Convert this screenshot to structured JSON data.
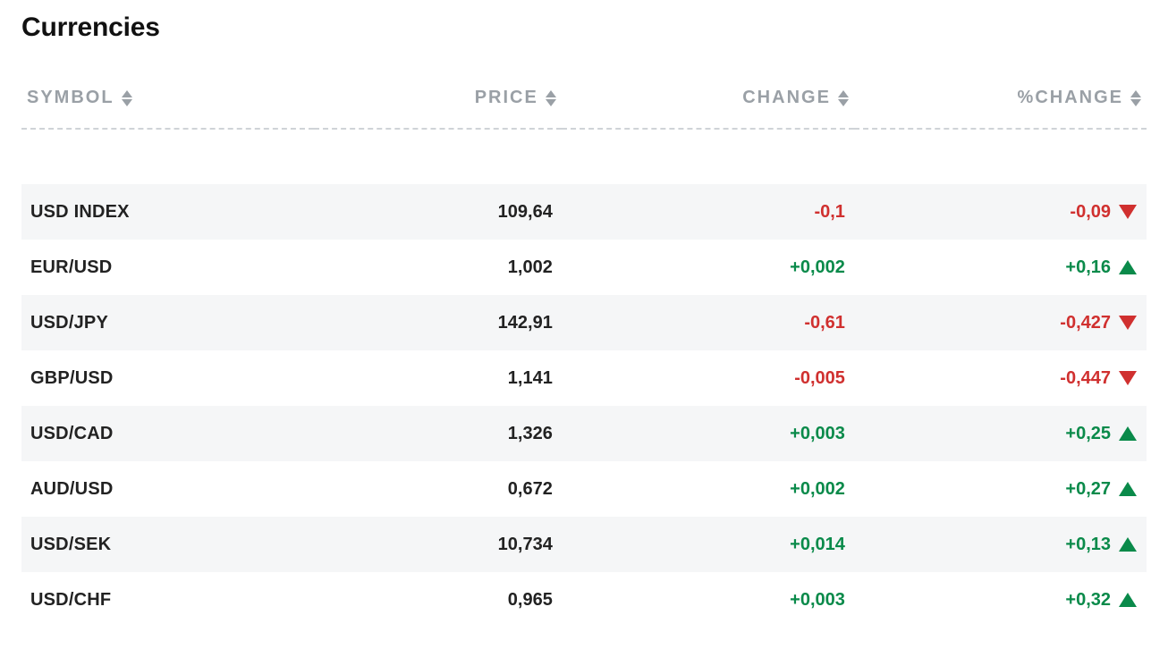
{
  "title": "Currencies",
  "colors": {
    "positive": "#0a8a4a",
    "negative": "#d0302f",
    "header_text": "#9aa0a6",
    "row_alt_bg": "#f5f6f7",
    "text": "#222222",
    "divider": "#cfd3d7",
    "sort_icon": "#9aa0a6"
  },
  "table": {
    "type": "table",
    "columns": [
      {
        "key": "symbol",
        "label": "SYMBOL",
        "align": "left",
        "sortable": true
      },
      {
        "key": "price",
        "label": "PRICE",
        "align": "right",
        "sortable": true
      },
      {
        "key": "change",
        "label": "CHANGE",
        "align": "right",
        "sortable": true
      },
      {
        "key": "pctchange",
        "label": "%CHANGE",
        "align": "right",
        "sortable": true
      }
    ],
    "rows": [
      {
        "symbol": "USD INDEX",
        "price": "109,64",
        "change": "-0,1",
        "pctchange": "-0,09",
        "direction": "down"
      },
      {
        "symbol": "EUR/USD",
        "price": "1,002",
        "change": "+0,002",
        "pctchange": "+0,16",
        "direction": "up"
      },
      {
        "symbol": "USD/JPY",
        "price": "142,91",
        "change": "-0,61",
        "pctchange": "-0,427",
        "direction": "down"
      },
      {
        "symbol": "GBP/USD",
        "price": "1,141",
        "change": "-0,005",
        "pctchange": "-0,447",
        "direction": "down"
      },
      {
        "symbol": "USD/CAD",
        "price": "1,326",
        "change": "+0,003",
        "pctchange": "+0,25",
        "direction": "up"
      },
      {
        "symbol": "AUD/USD",
        "price": "0,672",
        "change": "+0,002",
        "pctchange": "+0,27",
        "direction": "up"
      },
      {
        "symbol": "USD/SEK",
        "price": "10,734",
        "change": "+0,014",
        "pctchange": "+0,13",
        "direction": "up"
      },
      {
        "symbol": "USD/CHF",
        "price": "0,965",
        "change": "+0,003",
        "pctchange": "+0,32",
        "direction": "up"
      }
    ]
  }
}
